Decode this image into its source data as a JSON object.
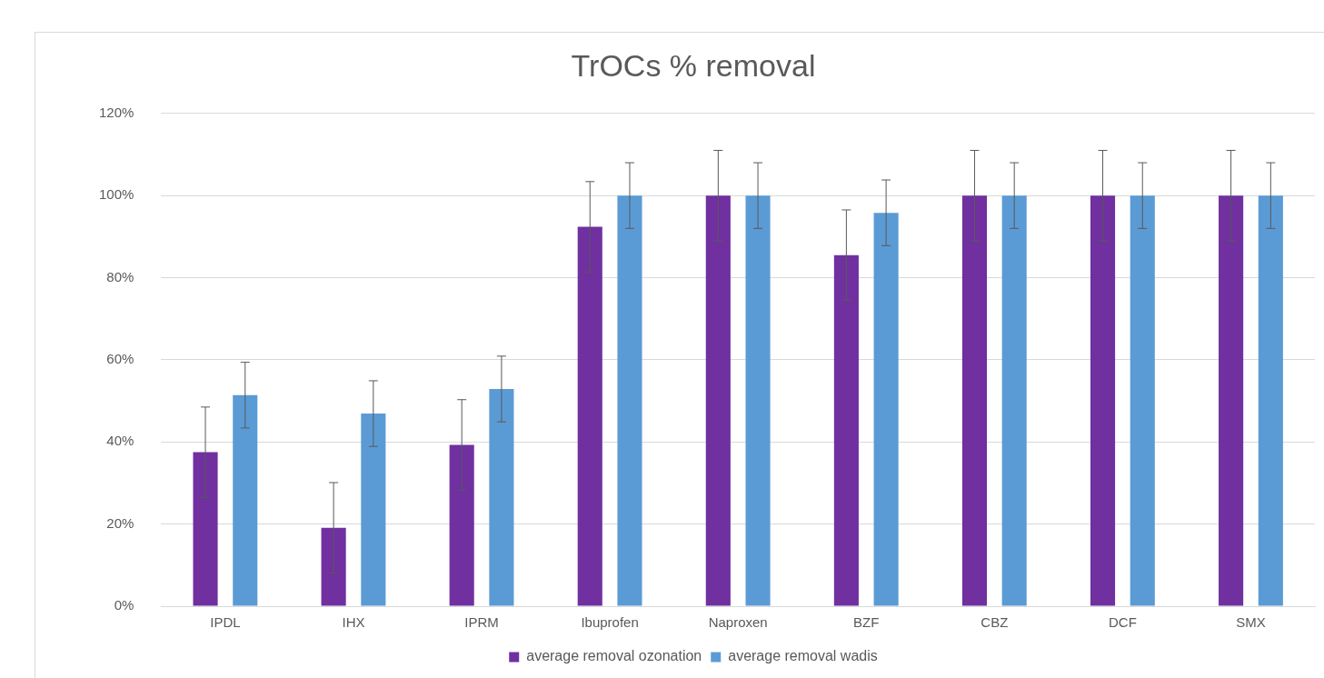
{
  "chart_data": {
    "type": "bar",
    "title": "TrOCs % removal",
    "categories": [
      "IPDL",
      "IHX",
      "IPRM",
      "Ibuprofen",
      "Naproxen",
      "BZF",
      "CBZ",
      "DCF",
      "SMX"
    ],
    "series": [
      {
        "name": "average removal ozonation",
        "color": "#7030a0",
        "values": [
          37.5,
          19.1,
          39.3,
          92.4,
          100,
          85.5,
          100,
          100,
          100
        ],
        "errors": [
          11,
          11,
          11,
          11,
          11,
          11,
          11,
          11,
          11
        ]
      },
      {
        "name": "average removal wadis",
        "color": "#5b9bd5",
        "values": [
          51.4,
          46.9,
          52.9,
          100,
          100,
          95.8,
          100,
          100,
          100
        ],
        "errors": [
          8,
          8,
          8,
          8,
          8,
          8,
          8,
          8,
          8
        ]
      }
    ],
    "ylim": [
      0,
      120
    ],
    "yticks": [
      {
        "value": 0,
        "label": "0%"
      },
      {
        "value": 20,
        "label": "20%"
      },
      {
        "value": 40,
        "label": "40%"
      },
      {
        "value": 60,
        "label": "60%"
      },
      {
        "value": 80,
        "label": "80%"
      },
      {
        "value": 100,
        "label": "100%"
      },
      {
        "value": 120,
        "label": "120%"
      }
    ],
    "grid": "y",
    "legend": "bottom"
  }
}
